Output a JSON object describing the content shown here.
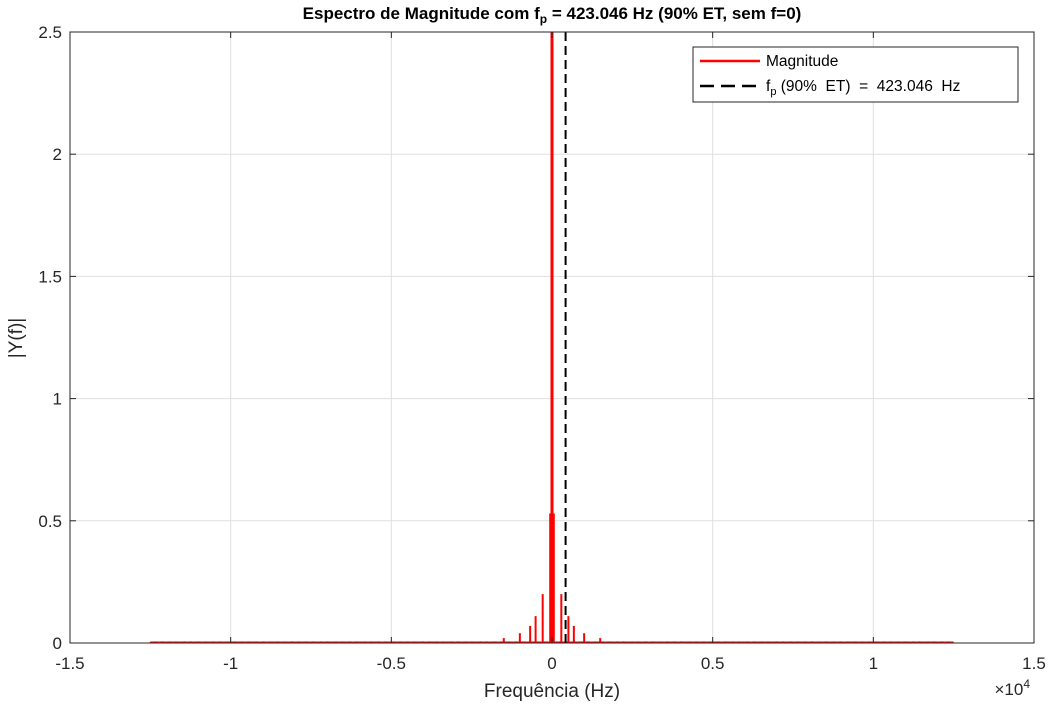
{
  "chart_data": {
    "type": "line",
    "title_parts": {
      "before_sub": "Espectro de Magnitude com f",
      "sub": "p",
      "after_sub": " = 423.046 Hz (90% ET, sem f=0)"
    },
    "xlabel": "Frequência (Hz)",
    "ylabel": "|Y(f)|",
    "x_exponent_label": {
      "base": "×10",
      "exp": "4"
    },
    "xlim": [
      -15000,
      15000
    ],
    "ylim": [
      0,
      2.5
    ],
    "xticks": [
      -15000,
      -10000,
      -5000,
      0,
      5000,
      10000,
      15000
    ],
    "xtick_labels": [
      "-1.5",
      "-1",
      "-0.5",
      "0",
      "0.5",
      "1",
      "1.5"
    ],
    "yticks": [
      0,
      0.5,
      1,
      1.5,
      2,
      2.5
    ],
    "ytick_labels": [
      "0",
      "0.5",
      "1",
      "1.5",
      "2",
      "2.5"
    ],
    "grid": true,
    "legend_position": "top-right",
    "series": [
      {
        "name": "Magnitude",
        "kind": "spectrum",
        "color": "#ff0000",
        "x_range": [
          -12500,
          12500
        ],
        "peaks": [
          {
            "x": 0,
            "y": 2.5
          },
          {
            "x": -40,
            "y": 0.53
          },
          {
            "x": 40,
            "y": 0.53
          },
          {
            "x": -290,
            "y": 0.2
          },
          {
            "x": 290,
            "y": 0.2
          },
          {
            "x": -510,
            "y": 0.11
          },
          {
            "x": 510,
            "y": 0.11
          },
          {
            "x": -680,
            "y": 0.07
          },
          {
            "x": 680,
            "y": 0.07
          },
          {
            "x": -1000,
            "y": 0.04
          },
          {
            "x": 1000,
            "y": 0.04
          },
          {
            "x": -1500,
            "y": 0.02
          },
          {
            "x": 1500,
            "y": 0.02
          }
        ],
        "noise_floor": 0.004
      },
      {
        "name_parts": {
          "before_sub": "f",
          "sub": "p",
          "after_sub": " (90%  ET)  =  423.046  Hz"
        },
        "kind": "vline",
        "x": 423.046,
        "color": "#000000",
        "style": "dashed"
      }
    ]
  }
}
